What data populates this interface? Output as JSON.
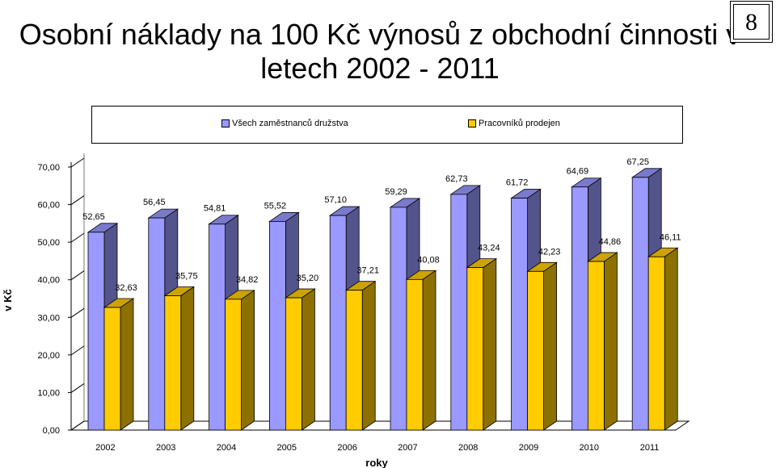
{
  "page_number": "8",
  "chart_data": {
    "type": "bar",
    "title": "Osobní náklady na 100 Kč výnosů z obchodní činnosti v letech 2002 - 2011",
    "xlabel": "roky",
    "ylabel": "v Kč",
    "categories": [
      "2002",
      "2003",
      "2004",
      "2005",
      "2006",
      "2007",
      "2008",
      "2009",
      "2010",
      "2011"
    ],
    "series": [
      {
        "name": "Všech zaměstnanců družstva",
        "color": "#9999ff",
        "values": [
          52.65,
          56.45,
          54.81,
          55.52,
          57.1,
          59.29,
          62.73,
          61.72,
          64.69,
          67.25
        ],
        "labels": [
          "52,65",
          "56,45",
          "54,81",
          "55,52",
          "57,10",
          "59,29",
          "62,73",
          "61,72",
          "64,69",
          "67,25"
        ]
      },
      {
        "name": "Pracovníků prodejen",
        "color": "#ffcc00",
        "values": [
          32.63,
          35.75,
          34.82,
          35.2,
          37.21,
          40.08,
          43.24,
          42.23,
          44.86,
          46.11
        ],
        "labels": [
          "32,63",
          "35,75",
          "34,82",
          "35,20",
          "37,21",
          "40,08",
          "43,24",
          "42,23",
          "44,86",
          "46,11"
        ]
      }
    ],
    "ylim": [
      0,
      70
    ],
    "yticks": [
      "0,00",
      "10,00",
      "20,00",
      "30,00",
      "40,00",
      "50,00",
      "60,00",
      "70,00"
    ],
    "grid": false,
    "legend_position": "top"
  }
}
